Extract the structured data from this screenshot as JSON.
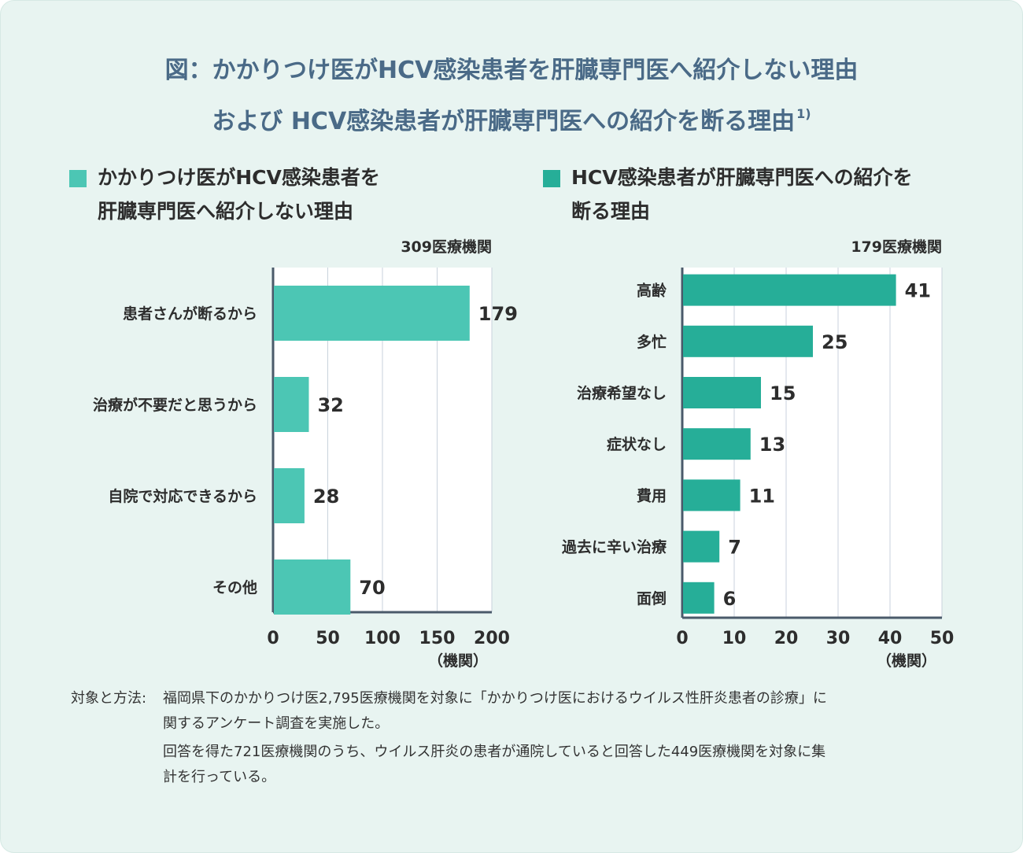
{
  "title": {
    "line1": "図：かかりつけ医がHCV感染患者を肝臓専門医へ紹介しない理由",
    "line2": "および HCV感染患者が肝臓専門医への紹介を断る理由",
    "ref": "1)"
  },
  "colors": {
    "left_bar": "#4cc6b4",
    "right_bar": "#26ae98",
    "title": "#4a6a87",
    "background": "#e8f4f1"
  },
  "chart_data": [
    {
      "type": "bar",
      "orientation": "horizontal",
      "title_line1": "かかりつけ医がHCV感染患者を",
      "title_line2": "肝臓専門医へ紹介しない理由",
      "total_label": "309医療機関",
      "categories": [
        "患者さんが断るから",
        "治療が不要だと思うから",
        "自院で対応できるから",
        "その他"
      ],
      "values": [
        179,
        32,
        28,
        70
      ],
      "xlim": [
        0,
        200
      ],
      "xticks": [
        0,
        50,
        100,
        150,
        200
      ],
      "xlabel": "（機関）",
      "grid": true
    },
    {
      "type": "bar",
      "orientation": "horizontal",
      "title_line1": "HCV感染患者が肝臓専門医への紹介を",
      "title_line2": "断る理由",
      "total_label": "179医療機関",
      "categories": [
        "高齢",
        "多忙",
        "治療希望なし",
        "症状なし",
        "費用",
        "過去に辛い治療",
        "面倒"
      ],
      "values": [
        41,
        25,
        15,
        13,
        11,
        7,
        6
      ],
      "xlim": [
        0,
        50
      ],
      "xticks": [
        0,
        10,
        20,
        30,
        40,
        50
      ],
      "xlabel": "（機関）",
      "grid": true
    }
  ],
  "footnote": {
    "label": "対象と方法:",
    "line1": "福岡県下のかかりつけ医2,795医療機関を対象に「かかりつけ医におけるウイルス性肝炎患者の診療」に",
    "line2": "関するアンケート調査を実施した。",
    "line3": "回答を得た721医療機関のうち、ウイルス肝炎の患者が通院していると回答した449医療機関を対象に集",
    "line4": "計を行っている。"
  }
}
